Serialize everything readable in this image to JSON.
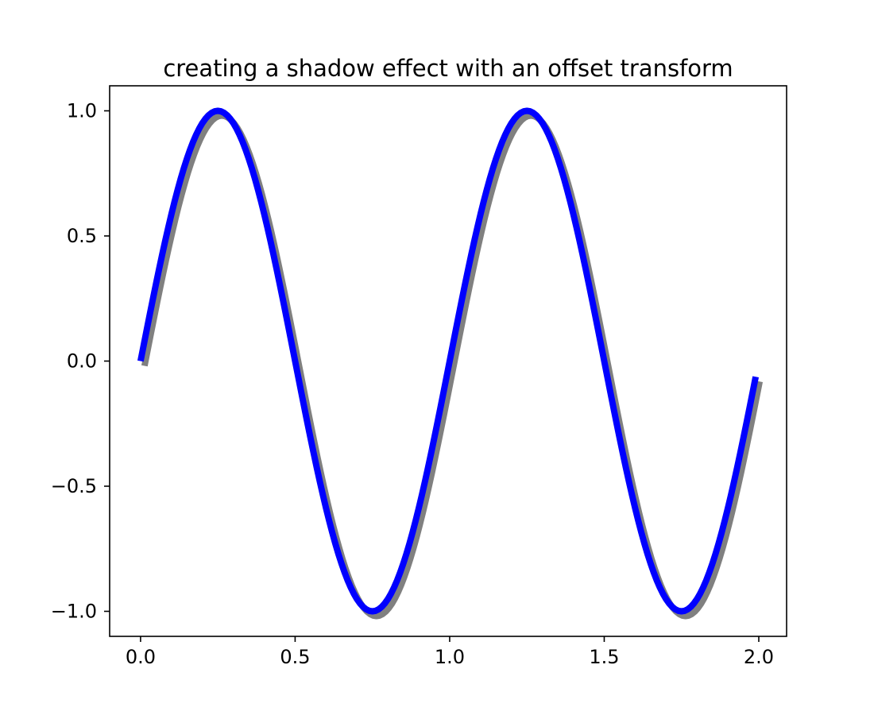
{
  "chart_data": {
    "type": "line",
    "title": "creating a shadow effect with an offset transform",
    "xlabel": "",
    "ylabel": "",
    "xlim": [
      -0.1,
      2.09
    ],
    "ylim": [
      -1.1,
      1.1
    ],
    "grid": false,
    "legend": "none",
    "x_ticks": [
      {
        "value": 0.0,
        "label": "0.0"
      },
      {
        "value": 0.5,
        "label": "0.5"
      },
      {
        "value": 1.0,
        "label": "1.0"
      },
      {
        "value": 1.5,
        "label": "1.5"
      },
      {
        "value": 2.0,
        "label": "2.0"
      }
    ],
    "y_ticks": [
      {
        "value": 1.0,
        "label": "1.0"
      },
      {
        "value": 0.5,
        "label": "0.5"
      },
      {
        "value": 0.0,
        "label": "0.0"
      },
      {
        "value": -0.5,
        "label": "−0.5"
      },
      {
        "value": -1.0,
        "label": "−1.0"
      }
    ],
    "series": [
      {
        "function": "sin(2πx)",
        "x_start": 0.0,
        "x_end": 1.99,
        "x_step": 0.01,
        "color": "#0000ff",
        "shadow_color": "#808080"
      }
    ]
  }
}
